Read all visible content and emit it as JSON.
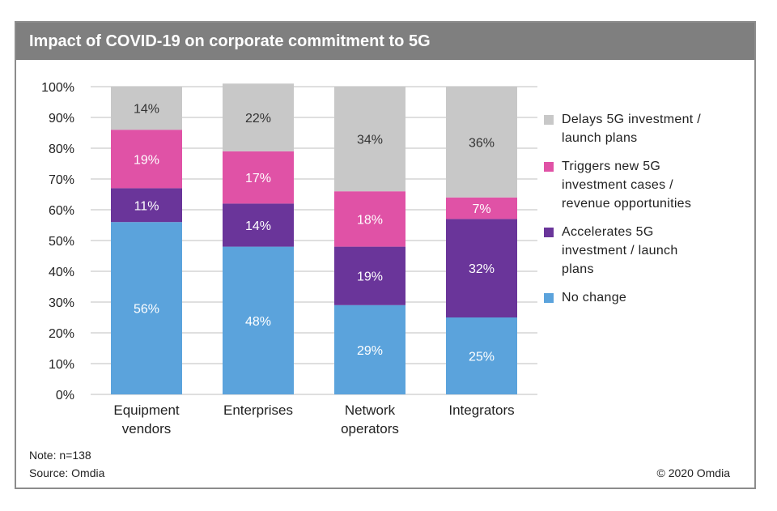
{
  "title": "Impact of COVID-19 on corporate commitment to 5G",
  "note": "Note: n=138",
  "source": "Source: Omdia",
  "copyright": "© 2020 Omdia",
  "chart_data": {
    "type": "bar",
    "stacked": true,
    "categories": [
      [
        "Equipment",
        "vendors"
      ],
      [
        "Enterprises"
      ],
      [
        "Network",
        "operators"
      ],
      [
        "Integrators"
      ]
    ],
    "series": [
      {
        "name": "No change",
        "color": "#5ba3dc",
        "label_color": "#ffffff",
        "values": [
          56,
          48,
          29,
          25
        ],
        "labels": [
          "56%",
          "48%",
          "29%",
          "25%"
        ]
      },
      {
        "name": "Accelerates 5G investment / launch plans",
        "color": "#6a359a",
        "label_color": "#ffffff",
        "values": [
          11,
          14,
          19,
          32
        ],
        "labels": [
          "11%",
          "14%",
          "19%",
          "32%"
        ]
      },
      {
        "name": "Triggers new 5G investment cases / revenue opportunities",
        "color": "#e052a6",
        "label_color": "#ffffff",
        "values": [
          19,
          17,
          18,
          7
        ],
        "labels": [
          "19%",
          "17%",
          "18%",
          "7%"
        ]
      },
      {
        "name": "Delays 5G investment / launch plans",
        "color": "#c8c8c8",
        "label_color": "#333333",
        "values": [
          14,
          22,
          34,
          36
        ],
        "labels": [
          "14%",
          "22%",
          "34%",
          "36%"
        ]
      }
    ],
    "ylim": [
      0,
      100
    ],
    "yticks": [
      "0%",
      "10%",
      "20%",
      "30%",
      "40%",
      "50%",
      "60%",
      "70%",
      "80%",
      "90%",
      "100%"
    ],
    "grid": true,
    "legend_position": "right",
    "legend": [
      {
        "lines": [
          "Delays 5G investment /",
          "launch plans"
        ],
        "color": "#c8c8c8"
      },
      {
        "lines": [
          "Triggers new 5G",
          "investment cases /",
          "revenue opportunities"
        ],
        "color": "#e052a6"
      },
      {
        "lines": [
          "Accelerates 5G",
          "investment / launch",
          "plans"
        ],
        "color": "#6a359a"
      },
      {
        "lines": [
          "No change"
        ],
        "color": "#5ba3dc"
      }
    ]
  }
}
